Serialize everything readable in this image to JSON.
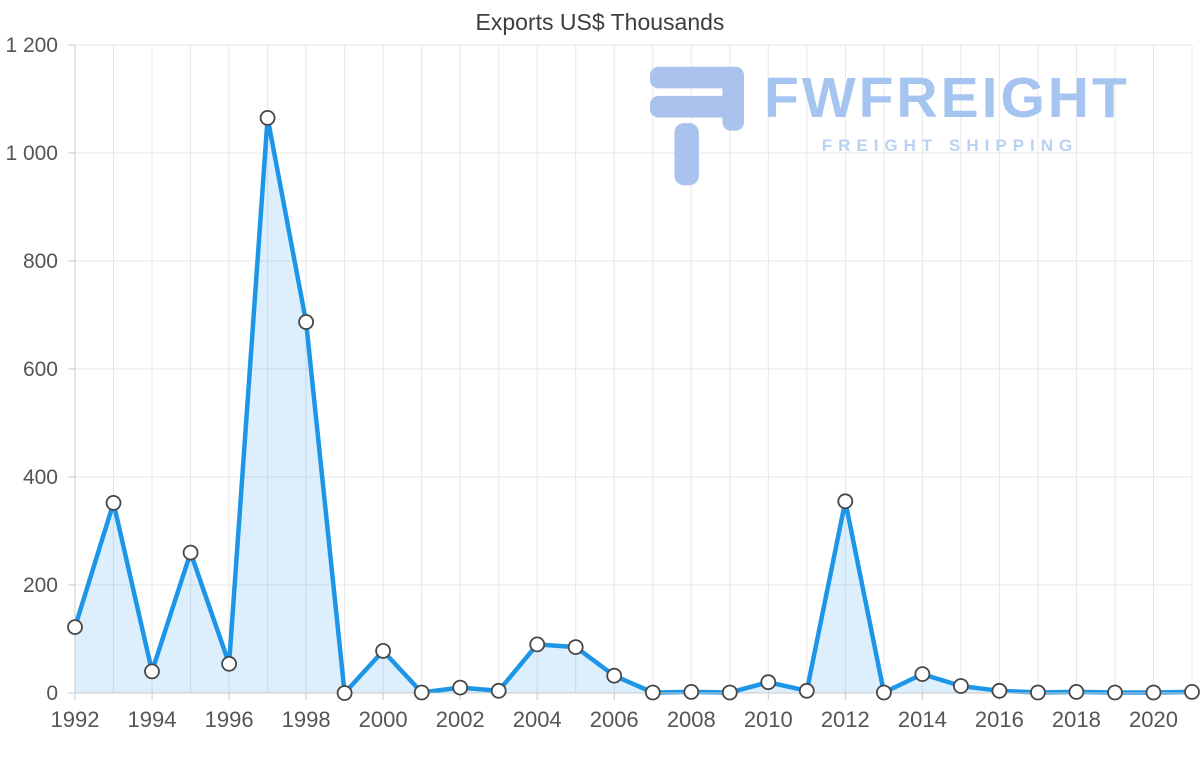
{
  "chart": {
    "title": "Exports US$ Thousands"
  },
  "logo": {
    "wordmark": "FWFREIGHT",
    "tagline": "FREIGHT SHIPPING",
    "color": "#a6c4f0",
    "tagline_color": "#b9d2f3"
  },
  "chart_data": {
    "type": "area",
    "title": "Exports US$ Thousands",
    "xlabel": "",
    "ylabel": "",
    "grid": true,
    "legend": false,
    "x": [
      1992,
      1993,
      1994,
      1995,
      1996,
      1997,
      1998,
      1999,
      2000,
      2001,
      2002,
      2003,
      2004,
      2005,
      2006,
      2007,
      2008,
      2009,
      2010,
      2011,
      2012,
      2013,
      2014,
      2015,
      2016,
      2017,
      2018,
      2019,
      2020,
      2021
    ],
    "values": [
      122,
      352,
      40,
      260,
      54,
      1065,
      687,
      0,
      78,
      1,
      10,
      4,
      90,
      85,
      32,
      1,
      2,
      1,
      20,
      4,
      355,
      1,
      35,
      13,
      4,
      1,
      2,
      1,
      1,
      2
    ],
    "ylim": [
      0,
      1200
    ],
    "xlim": [
      1992,
      2021
    ],
    "y_ticks": [
      {
        "value": 0,
        "label": "0"
      },
      {
        "value": 200,
        "label": "200"
      },
      {
        "value": 400,
        "label": "400"
      },
      {
        "value": 600,
        "label": "600"
      },
      {
        "value": 800,
        "label": "800"
      },
      {
        "value": 1000,
        "label": "1 000"
      },
      {
        "value": 1200,
        "label": "1 200"
      }
    ],
    "x_ticks": [
      {
        "value": 1992,
        "label": "1992"
      },
      {
        "value": 1994,
        "label": "1994"
      },
      {
        "value": 1996,
        "label": "1996"
      },
      {
        "value": 1998,
        "label": "1998"
      },
      {
        "value": 2000,
        "label": "2000"
      },
      {
        "value": 2002,
        "label": "2002"
      },
      {
        "value": 2004,
        "label": "2004"
      },
      {
        "value": 2006,
        "label": "2006"
      },
      {
        "value": 2008,
        "label": "2008"
      },
      {
        "value": 2010,
        "label": "2010"
      },
      {
        "value": 2012,
        "label": "2012"
      },
      {
        "value": 2014,
        "label": "2014"
      },
      {
        "value": 2016,
        "label": "2016"
      },
      {
        "value": 2018,
        "label": "2018"
      },
      {
        "value": 2020,
        "label": "2020"
      }
    ],
    "colors": {
      "line": "#1e96e8",
      "fill": "rgba(30,150,232,0.15)",
      "marker_fill": "#ffffff",
      "marker_stroke": "#474747",
      "grid": "#e7e7e7",
      "axis": "#c9c9c9",
      "tick_text": "#555555",
      "title_text": "#3d3d3d"
    }
  }
}
